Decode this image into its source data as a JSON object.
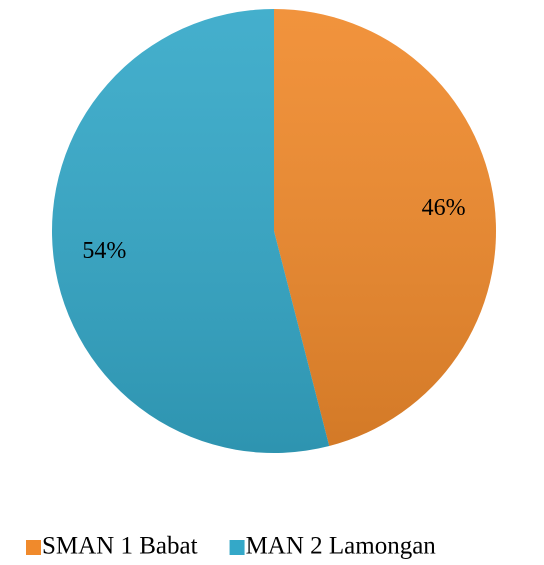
{
  "chart_data": {
    "type": "pie",
    "categories": [
      "SMAN 1 Babat",
      "MAN 2 Lamongan"
    ],
    "values": [
      46,
      54
    ],
    "value_labels": [
      "46%",
      "54%"
    ],
    "colors": [
      "#f08a2c",
      "#34a8c8"
    ],
    "legend": "bottom"
  }
}
